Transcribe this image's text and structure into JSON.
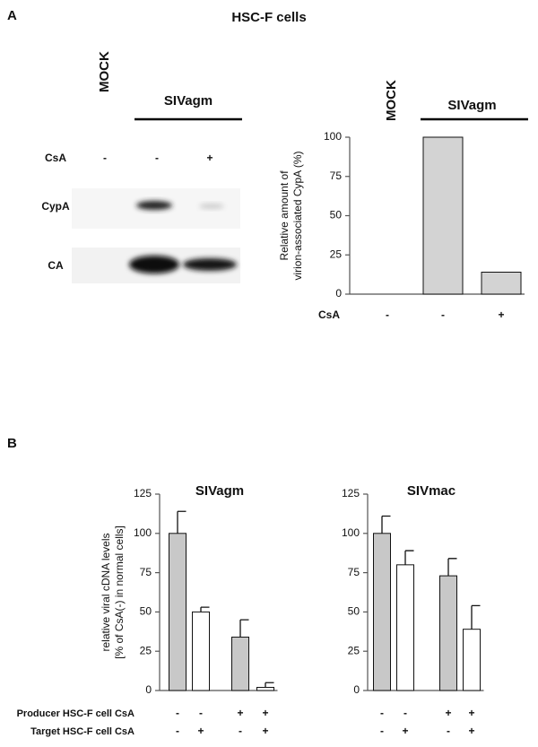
{
  "panel_labels": [
    "A",
    "B"
  ],
  "panel_a": {
    "title": "HSC-F cells",
    "blot": {
      "group_labels": [
        "MOCK",
        "SIVagm"
      ],
      "condition_label": "CsA",
      "conditions": [
        "-",
        "-",
        "+"
      ],
      "rows": [
        "CypA",
        "CA"
      ]
    }
  },
  "panel_b": {
    "row_labels": [
      "Producer HSC-F cell CsA",
      "Target HSC-F cell CsA"
    ]
  },
  "chart_data": [
    {
      "type": "bar",
      "ylabel": [
        "Relative amount  of",
        "virion-associated CypA (%)"
      ],
      "group_labels": [
        "MOCK",
        "SIVagm"
      ],
      "condition_label": "CsA",
      "categories": [
        "-",
        "-",
        "+"
      ],
      "values": [
        0,
        100,
        14
      ],
      "bar_colors": [
        "#d3d3d3",
        "#d3d3d3",
        "#d3d3d3"
      ],
      "ylim": [
        0,
        100
      ],
      "yticks": [
        0,
        25,
        50,
        75,
        100
      ]
    },
    {
      "type": "bar",
      "title": "SIVagm",
      "ylabel": [
        "relative viral cDNA levels",
        "[% of  CsA(-) in normal cells]"
      ],
      "conditions": [
        [
          "-",
          "-",
          "+",
          "+"
        ],
        [
          "-",
          "+",
          "-",
          "+"
        ]
      ],
      "values": [
        100,
        50,
        34,
        2
      ],
      "errors": [
        14,
        3,
        11,
        3
      ],
      "bar_colors": [
        "#c8c8c8",
        "#ffffff",
        "#c8c8c8",
        "#ffffff"
      ],
      "ylim": [
        0,
        125
      ],
      "yticks": [
        0,
        25,
        50,
        75,
        100,
        125
      ]
    },
    {
      "type": "bar",
      "title": "SIVmac",
      "conditions": [
        [
          "-",
          "-",
          "+",
          "+"
        ],
        [
          "-",
          "+",
          "-",
          "+"
        ]
      ],
      "values": [
        100,
        80,
        73,
        39
      ],
      "errors": [
        11,
        9,
        11,
        15
      ],
      "bar_colors": [
        "#c8c8c8",
        "#ffffff",
        "#c8c8c8",
        "#ffffff"
      ],
      "ylim": [
        0,
        125
      ],
      "yticks": [
        0,
        25,
        50,
        75,
        100,
        125
      ]
    }
  ]
}
